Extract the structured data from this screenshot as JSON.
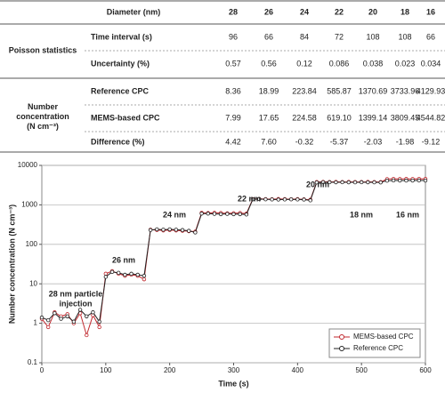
{
  "table": {
    "header": {
      "label": "Diameter (nm)",
      "values": [
        "28",
        "26",
        "24",
        "22",
        "20",
        "18",
        "16"
      ]
    },
    "groups": [
      {
        "label": [
          "Poisson statistics"
        ],
        "rows": [
          {
            "label": "Time interval (s)",
            "values": [
              "96",
              "66",
              "84",
              "72",
              "108",
              "108",
              "66"
            ]
          },
          {
            "label": "Uncertainty (%)",
            "values": [
              "0.57",
              "0.56",
              "0.12",
              "0.086",
              "0.038",
              "0.023",
              "0.034"
            ]
          }
        ]
      },
      {
        "label": [
          "Number",
          "concentration",
          "(N cm⁻³)"
        ],
        "rows": [
          {
            "label": "Reference CPC",
            "values": [
              "8.36",
              "18.99",
              "223.84",
              "585.87",
              "1370.69",
              "3733.96",
              "4129.93"
            ]
          },
          {
            "label": "MEMS-based CPC",
            "values": [
              "7.99",
              "17.65",
              "224.58",
              "619.10",
              "1399.14",
              "3809.45",
              "4544.82"
            ]
          },
          {
            "label": "Difference (%)",
            "values": [
              "4.42",
              "7.60",
              "-0.32",
              "-5.37",
              "-2.03",
              "-1.98",
              "-9.12"
            ]
          }
        ]
      }
    ]
  },
  "chart_data": {
    "type": "line",
    "x_label": "Time (s)",
    "y_label": "Number concentration (N cm⁻³)",
    "log_y": true,
    "grid": true,
    "legend": "lower right",
    "xlim": [
      0,
      600
    ],
    "xticks": [
      0,
      100,
      200,
      300,
      400,
      500,
      600
    ],
    "ylim": [
      0.1,
      10000
    ],
    "yticks": [
      0.1,
      1,
      10,
      100,
      1000,
      10000
    ],
    "annotations": [
      [
        "28 nm particle",
        "injection"
      ],
      [
        "26 nm"
      ],
      [
        "24 nm"
      ],
      [
        "22 nm"
      ],
      [
        "20 nm"
      ],
      [
        "18 nm"
      ],
      [
        "16 nm"
      ]
    ],
    "x": [
      0,
      10,
      20,
      30,
      40,
      50,
      60,
      70,
      80,
      90,
      100,
      110,
      120,
      130,
      140,
      150,
      160,
      170,
      180,
      190,
      200,
      210,
      220,
      230,
      240,
      250,
      260,
      270,
      280,
      290,
      300,
      310,
      320,
      330,
      340,
      350,
      360,
      370,
      380,
      390,
      400,
      410,
      420,
      430,
      440,
      450,
      460,
      470,
      480,
      490,
      500,
      510,
      520,
      530,
      540,
      550,
      560,
      570,
      580,
      590,
      600
    ],
    "series": [
      {
        "name": "MEMS-based CPC",
        "color": "#c0272d",
        "values": [
          1.3,
          0.8,
          1.9,
          1.5,
          1.7,
          1.0,
          1.8,
          0.5,
          1.6,
          0.8,
          18,
          21,
          18,
          16,
          17,
          16,
          13,
          235,
          230,
          225,
          230,
          225,
          220,
          215,
          210,
          630,
          620,
          630,
          620,
          610,
          615,
          620,
          600,
          1400,
          1420,
          1400,
          1390,
          1410,
          1400,
          1390,
          1400,
          1380,
          1350,
          3800,
          3820,
          3800,
          3810,
          3790,
          3810,
          3800,
          3790,
          3810,
          3800,
          3780,
          4500,
          4550,
          4530,
          4540,
          4520,
          4550,
          4540
        ]
      },
      {
        "name": "Reference CPC",
        "color": "#222222",
        "values": [
          1.4,
          1.2,
          1.8,
          1.3,
          1.5,
          1.1,
          2.2,
          1.5,
          1.9,
          1.1,
          15,
          20,
          19,
          17,
          18,
          17,
          16,
          230,
          240,
          235,
          240,
          235,
          230,
          220,
          200,
          600,
          600,
          590,
          580,
          590,
          580,
          580,
          570,
          1380,
          1400,
          1380,
          1370,
          1360,
          1370,
          1380,
          1370,
          1360,
          1300,
          3700,
          3750,
          3740,
          3730,
          3740,
          3730,
          3720,
          3740,
          3730,
          3720,
          3700,
          4100,
          4150,
          4130,
          4120,
          4130,
          4140,
          4130
        ]
      }
    ]
  }
}
